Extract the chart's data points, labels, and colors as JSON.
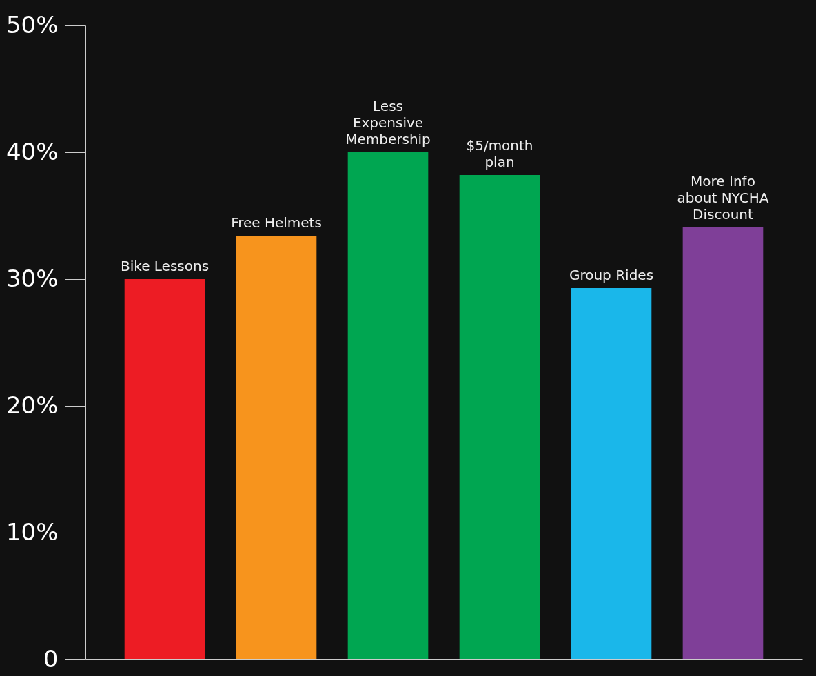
{
  "chart_data": {
    "type": "bar",
    "categories": [
      "Bike Lessons",
      "Free Helmets",
      "Less Expensive Membership",
      "$5/month plan",
      "Group Rides",
      "More Info about NYCHA Discount"
    ],
    "values": [
      30,
      33.4,
      40,
      38.2,
      29.3,
      34.1
    ],
    "colors": [
      "#ed1c24",
      "#f7941d",
      "#00a651",
      "#00a651",
      "#1ab7ea",
      "#7f3f98"
    ],
    "ylim": [
      0,
      50
    ],
    "yticks": [
      {
        "value": 0,
        "label": "0"
      },
      {
        "value": 10,
        "label": "10%"
      },
      {
        "value": 20,
        "label": "20%"
      },
      {
        "value": 30,
        "label": "30%"
      },
      {
        "value": 40,
        "label": "40%"
      },
      {
        "value": 50,
        "label": "50%"
      }
    ],
    "tick_labels": "y",
    "grid": false
  }
}
